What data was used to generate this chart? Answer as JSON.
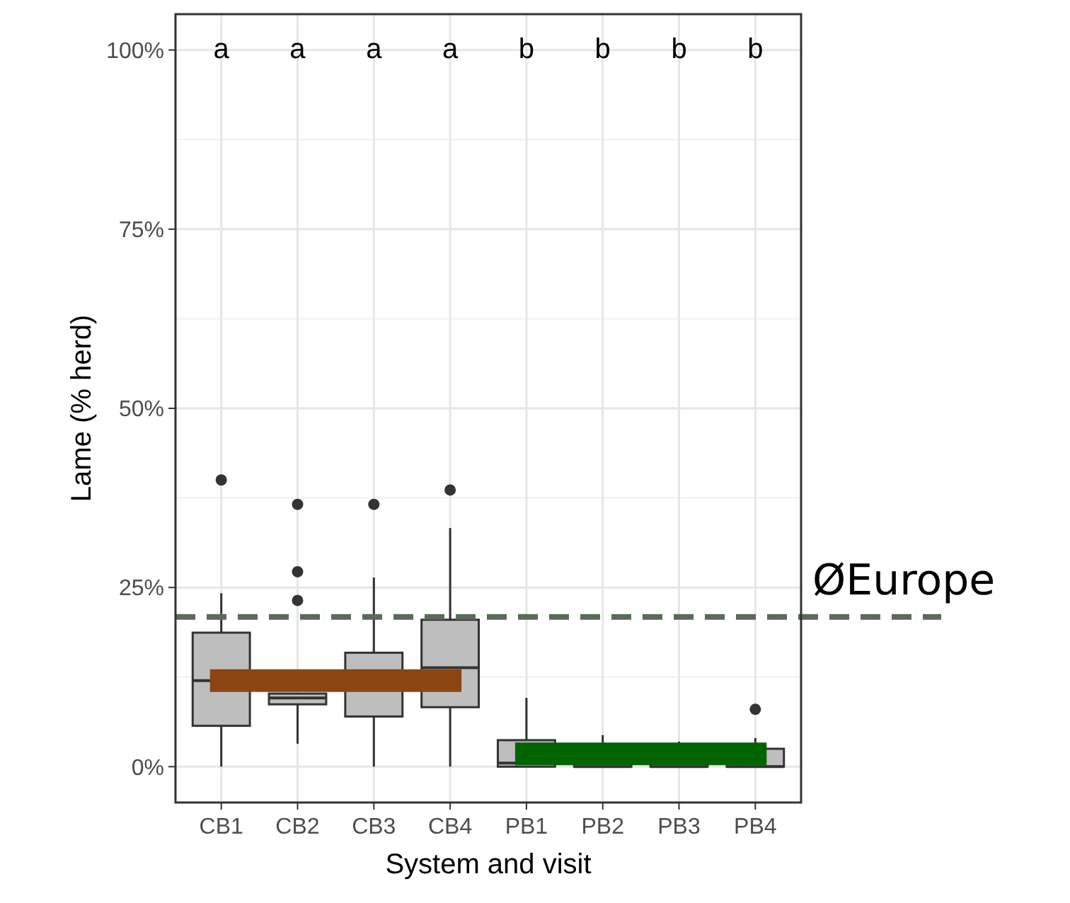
{
  "chart_data": {
    "type": "box",
    "xlabel": "System and visit",
    "ylabel": "Lame (% herd)",
    "categories": [
      "CB1",
      "CB2",
      "CB3",
      "CB4",
      "PB1",
      "PB2",
      "PB3",
      "PB4"
    ],
    "boxes": [
      {
        "low": 0,
        "q1": 5.7,
        "median": 12,
        "q3": 18.7,
        "high": 24.2,
        "outliers": [
          40
        ]
      },
      {
        "low": 3.2,
        "q1": 8.7,
        "median": 9.6,
        "q3": 10.2,
        "high": 10.2,
        "outliers": [
          36.6,
          27.2,
          23.2
        ]
      },
      {
        "low": 0,
        "q1": 7,
        "median": 12,
        "q3": 15.9,
        "high": 26.4,
        "outliers": [
          36.6
        ]
      },
      {
        "low": 0,
        "q1": 8.3,
        "median": 13.8,
        "q3": 20.5,
        "high": 33.3,
        "outliers": [
          38.6
        ]
      },
      {
        "low": 0,
        "q1": 0,
        "median": 0.5,
        "q3": 3.7,
        "high": 9.6
      },
      {
        "low": 0,
        "q1": 0,
        "median": 0,
        "q3": 3,
        "high": 4.4
      },
      {
        "low": 0,
        "q1": 0,
        "median": 0,
        "q3": 2.5,
        "high": 3.5
      },
      {
        "low": 0,
        "q1": 0,
        "median": 0,
        "q3": 2.5,
        "high": 4,
        "outliers": [
          8
        ]
      }
    ],
    "color": "#bebebe",
    "series": [
      {
        "type": "line",
        "color": "#8b4513",
        "x": [
          "CB1",
          "CB2",
          "CB3",
          "CB4"
        ],
        "values": [
          12,
          12,
          12,
          12
        ]
      },
      {
        "type": "line",
        "color": "#006400",
        "x": [
          "PB1",
          "PB2",
          "PB3",
          "PB4"
        ],
        "values": [
          1.8,
          1.8,
          1.8,
          1.8
        ]
      }
    ],
    "ref_lines": [
      {
        "axis": "y",
        "value": 20.9,
        "label": "ØEurope",
        "color": "#5a6b5a",
        "line_style": "dashed"
      }
    ],
    "annotations": [
      "a",
      "a",
      "a",
      "a",
      "b",
      "b",
      "b",
      "b"
    ],
    "ylim": [
      -5,
      105
    ],
    "yticks": [
      {
        "value": 0,
        "label": "0%"
      },
      {
        "value": 25,
        "label": "25%"
      },
      {
        "value": 50,
        "label": "50%"
      },
      {
        "value": 75,
        "label": "75%"
      },
      {
        "value": 100,
        "label": "100%"
      }
    ],
    "grid": true
  }
}
